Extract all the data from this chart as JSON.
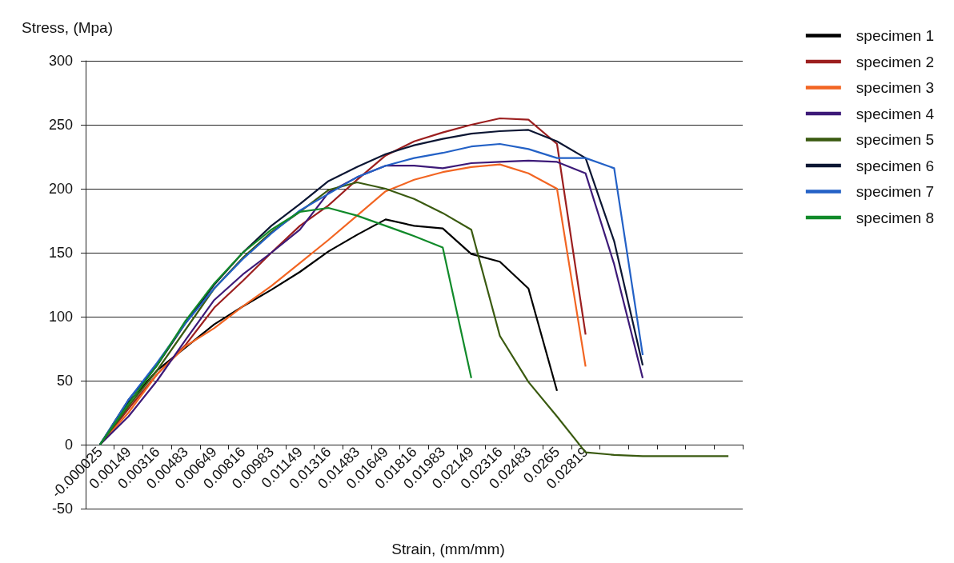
{
  "chart_data": {
    "type": "line",
    "ylabel": "Stress, (Mpa)",
    "xlabel": "Strain, (mm/mm)",
    "categories": [
      "-0.000025",
      "0.00149",
      "0.00316",
      "0.00483",
      "0.00649",
      "0.00816",
      "0.00983",
      "0.01149",
      "0.01316",
      "0.01483",
      "0.01649",
      "0.01816",
      "0.01983",
      "0.02149",
      "0.02316",
      "0.02483",
      "0.0265",
      "0.02819",
      null,
      null,
      null,
      null,
      null
    ],
    "ylim": [
      -50,
      300
    ],
    "yticks": [
      -50,
      0,
      50,
      100,
      150,
      200,
      250,
      300
    ],
    "grid": "y",
    "legend": "right",
    "marker": "none",
    "line_style": "solid",
    "series": [
      {
        "name": "specimen 1",
        "color": "#000000",
        "values": [
          0,
          33,
          58,
          76,
          94,
          108,
          121,
          135,
          151,
          164,
          176,
          171,
          169,
          149,
          143,
          122,
          42,
          null,
          null,
          null,
          null,
          null,
          null
        ]
      },
      {
        "name": "specimen 2",
        "color": "#9c1f1f",
        "values": [
          0,
          28,
          55,
          78,
          107,
          128,
          150,
          171,
          187,
          207,
          226,
          237,
          244,
          250,
          255,
          254,
          235,
          86,
          null,
          null,
          null,
          null,
          null
        ]
      },
      {
        "name": "specimen 3",
        "color": "#f26522",
        "values": [
          0,
          25,
          55,
          77,
          91,
          108,
          124,
          142,
          160,
          179,
          198,
          207,
          213,
          217,
          219,
          212,
          200,
          61,
          null,
          null,
          null,
          null,
          null
        ]
      },
      {
        "name": "specimen 4",
        "color": "#3d1a78",
        "values": [
          0,
          22,
          50,
          82,
          113,
          133,
          150,
          168,
          197,
          209,
          218,
          218,
          216,
          220,
          221,
          222,
          221,
          212,
          141,
          52,
          null,
          null,
          null
        ]
      },
      {
        "name": "specimen 5",
        "color": "#3a5a10",
        "values": [
          0,
          30,
          58,
          90,
          122,
          146,
          166,
          182,
          199,
          205,
          200,
          192,
          181,
          168,
          85,
          49,
          22,
          -6,
          -8,
          -9,
          -9,
          -9,
          -9
        ]
      },
      {
        "name": "specimen 6",
        "color": "#0c1633",
        "values": [
          0,
          35,
          62,
          95,
          125,
          150,
          171,
          188,
          206,
          217,
          227,
          234,
          239,
          243,
          245,
          246,
          237,
          224,
          159,
          62,
          null,
          null,
          null
        ]
      },
      {
        "name": "specimen 7",
        "color": "#2361c6",
        "values": [
          0,
          35,
          64,
          95,
          122,
          145,
          165,
          183,
          196,
          209,
          218,
          224,
          228,
          233,
          235,
          231,
          224,
          224,
          216,
          70,
          null,
          null,
          null
        ]
      },
      {
        "name": "specimen 8",
        "color": "#118a2a",
        "values": [
          0,
          32,
          62,
          97,
          126,
          150,
          168,
          182,
          185,
          179,
          171,
          163,
          154,
          52,
          null,
          null,
          null,
          null,
          null,
          null,
          null,
          null,
          null
        ]
      }
    ]
  }
}
